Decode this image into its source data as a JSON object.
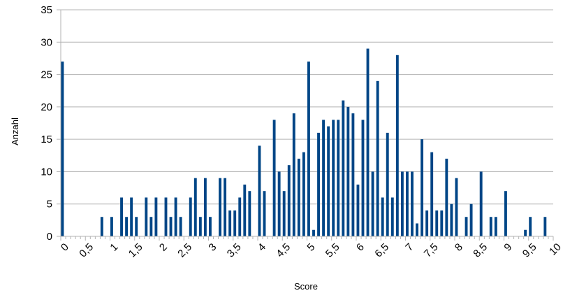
{
  "chart_data": {
    "type": "bar",
    "xlabel": "Score",
    "ylabel": "Anzahl",
    "ylim": [
      0,
      35
    ],
    "yticks": [
      "0",
      "5",
      "10",
      "15",
      "20",
      "25",
      "30",
      "35"
    ],
    "xlim": [
      0,
      10
    ],
    "xticks": [
      "0",
      "0,5",
      "1",
      "1,5",
      "2",
      "2,5",
      "3",
      "3,5",
      "4",
      "4,5",
      "5",
      "5,5",
      "6",
      "6,5",
      "7",
      "7,5",
      "8",
      "8,5",
      "9",
      "9,5",
      "10"
    ],
    "grid": "horizontal",
    "colors": {
      "bar": "#004586",
      "grid": "#b3b3b3",
      "axis": "#b3b3b3"
    },
    "categories": [
      "0",
      "0,1",
      "0,2",
      "0,3",
      "0,4",
      "0,5",
      "0,6",
      "0,7",
      "0,8",
      "0,9",
      "1",
      "1,1",
      "1,2",
      "1,3",
      "1,4",
      "1,5",
      "1,6",
      "1,7",
      "1,8",
      "1,9",
      "2",
      "2,1",
      "2,2",
      "2,3",
      "2,4",
      "2,5",
      "2,6",
      "2,7",
      "2,8",
      "2,9",
      "3",
      "3,1",
      "3,2",
      "3,3",
      "3,4",
      "3,5",
      "3,6",
      "3,7",
      "3,8",
      "3,9",
      "4",
      "4,1",
      "4,2",
      "4,3",
      "4,4",
      "4,5",
      "4,6",
      "4,7",
      "4,8",
      "4,9",
      "5",
      "5,1",
      "5,2",
      "5,3",
      "5,4",
      "5,5",
      "5,6",
      "5,7",
      "5,8",
      "5,9",
      "6",
      "6,1",
      "6,2",
      "6,3",
      "6,4",
      "6,5",
      "6,6",
      "6,7",
      "6,8",
      "6,9",
      "7",
      "7,1",
      "7,2",
      "7,3",
      "7,4",
      "7,5",
      "7,6",
      "7,7",
      "7,8",
      "7,9",
      "8",
      "8,1",
      "8,2",
      "8,3",
      "8,4",
      "8,5",
      "8,6",
      "8,7",
      "8,8",
      "8,9",
      "9",
      "9,1",
      "9,2",
      "9,3",
      "9,4",
      "9,5",
      "9,6",
      "9,7",
      "9,8",
      "9,9"
    ],
    "values": [
      27,
      0,
      0,
      0,
      0,
      0,
      0,
      0,
      3,
      0,
      3,
      0,
      6,
      3,
      6,
      3,
      0,
      6,
      3,
      6,
      0,
      6,
      3,
      6,
      3,
      0,
      6,
      9,
      3,
      9,
      3,
      0,
      9,
      9,
      4,
      4,
      6,
      8,
      7,
      0,
      14,
      7,
      0,
      18,
      10,
      7,
      11,
      19,
      12,
      13,
      27,
      1,
      16,
      18,
      17,
      18,
      18,
      21,
      20,
      19,
      8,
      18,
      29,
      10,
      24,
      6,
      16,
      6,
      28,
      10,
      10,
      10,
      2,
      15,
      4,
      13,
      4,
      4,
      12,
      5,
      9,
      0,
      3,
      5,
      0,
      10,
      0,
      3,
      3,
      0,
      7,
      0,
      0,
      0,
      1,
      3,
      0,
      0,
      3,
      0
    ]
  }
}
